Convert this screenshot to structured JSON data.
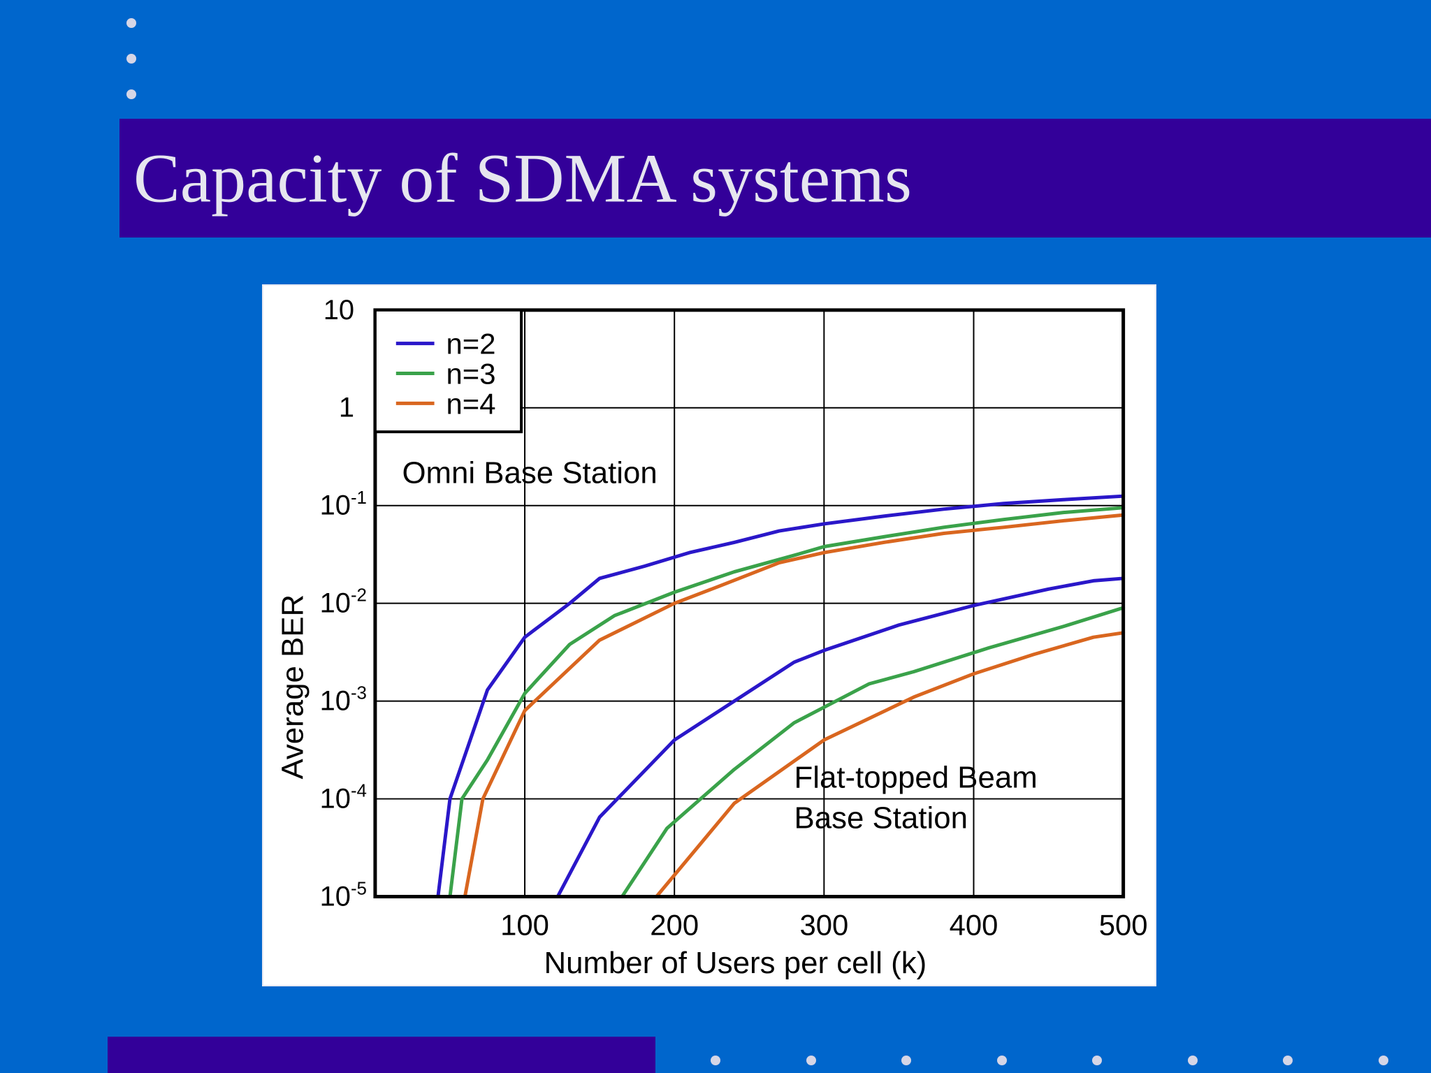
{
  "slide": {
    "title": "Capacity of SDMA systems",
    "colors": {
      "background": "#0066cc",
      "title_band": "#330099",
      "title_text": "#e6e6ef",
      "bullet_dots": "#d6d6e6"
    }
  },
  "chart_data": {
    "type": "line",
    "title": "",
    "xlabel": "Number of Users per cell (k)",
    "ylabel": "Average BER",
    "y_scale": "log",
    "xlim": [
      0,
      500
    ],
    "ylim": [
      1e-05,
      10
    ],
    "x_ticks": [
      100,
      200,
      300,
      400,
      500
    ],
    "x_tick_labels": [
      "100",
      "200",
      "300",
      "400",
      "500"
    ],
    "y_ticks": [
      {
        "value": 10,
        "base": "10",
        "exp": ""
      },
      {
        "value": 1,
        "base": "1",
        "exp": ""
      },
      {
        "value": 0.1,
        "base": "10",
        "exp": "-1"
      },
      {
        "value": 0.01,
        "base": "10",
        "exp": "-2"
      },
      {
        "value": 0.001,
        "base": "10",
        "exp": "-3"
      },
      {
        "value": 0.0001,
        "base": "10",
        "exp": "-4"
      },
      {
        "value": 1e-05,
        "base": "10",
        "exp": "-5"
      }
    ],
    "grid": true,
    "legend_position": "top-left",
    "legend": [
      {
        "label": "n=2",
        "color": "#2a17c9"
      },
      {
        "label": "n=3",
        "color": "#3aa24a"
      },
      {
        "label": "n=4",
        "color": "#d9661f"
      }
    ],
    "annotations": [
      {
        "lines": [
          "Omni Base Station"
        ],
        "x": 18,
        "y": 0.17
      },
      {
        "lines": [
          "Flat-topped Beam",
          "Base Station"
        ],
        "x": 280,
        "y": 0.00013
      }
    ],
    "series": [
      {
        "name": "n=2",
        "group": "Omni Base Station",
        "color": "#2a17c9",
        "x": [
          42,
          50,
          75,
          100,
          130,
          150,
          180,
          210,
          240,
          270,
          300,
          340,
          380,
          420,
          460,
          500
        ],
        "y": [
          1e-05,
          0.0001,
          0.0013,
          0.0045,
          0.01,
          0.018,
          0.024,
          0.033,
          0.042,
          0.055,
          0.065,
          0.078,
          0.092,
          0.105,
          0.115,
          0.125
        ]
      },
      {
        "name": "n=3",
        "group": "Omni Base Station",
        "color": "#3aa24a",
        "x": [
          50,
          58,
          75,
          100,
          130,
          160,
          200,
          240,
          280,
          300,
          340,
          380,
          420,
          460,
          500
        ],
        "y": [
          1e-05,
          0.0001,
          0.00025,
          0.0012,
          0.0038,
          0.0075,
          0.013,
          0.021,
          0.031,
          0.038,
          0.048,
          0.06,
          0.072,
          0.085,
          0.095
        ]
      },
      {
        "name": "n=4",
        "group": "Omni Base Station",
        "color": "#d9661f",
        "x": [
          60,
          72,
          100,
          150,
          200,
          230,
          270,
          300,
          340,
          380,
          420,
          460,
          500
        ],
        "y": [
          1e-05,
          0.0001,
          0.0008,
          0.0042,
          0.01,
          0.015,
          0.026,
          0.033,
          0.042,
          0.052,
          0.06,
          0.07,
          0.08
        ]
      },
      {
        "name": "n=2",
        "group": "Flat-topped Beam Base Station",
        "color": "#2a17c9",
        "x": [
          122,
          150,
          200,
          240,
          280,
          300,
          350,
          400,
          450,
          480,
          500
        ],
        "y": [
          1e-05,
          6.5e-05,
          0.0004,
          0.001,
          0.0025,
          0.0033,
          0.006,
          0.0095,
          0.014,
          0.017,
          0.018
        ]
      },
      {
        "name": "n=3",
        "group": "Flat-topped Beam Base Station",
        "color": "#3aa24a",
        "x": [
          165,
          195,
          240,
          280,
          330,
          360,
          410,
          460,
          500
        ],
        "y": [
          1e-05,
          5e-05,
          0.0002,
          0.0006,
          0.0015,
          0.002,
          0.0035,
          0.0058,
          0.009
        ]
      },
      {
        "name": "n=4",
        "group": "Flat-topped Beam Base Station",
        "color": "#d9661f",
        "x": [
          188,
          240,
          300,
          360,
          400,
          440,
          480,
          500
        ],
        "y": [
          1e-05,
          9e-05,
          0.0004,
          0.0011,
          0.0019,
          0.003,
          0.0045,
          0.005
        ]
      }
    ]
  }
}
